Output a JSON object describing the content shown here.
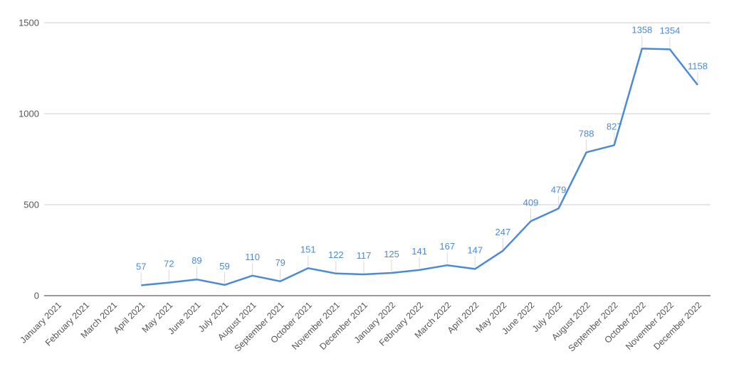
{
  "chart_data": {
    "type": "line",
    "title": "",
    "xlabel": "",
    "ylabel": "",
    "ylim": [
      0,
      1500
    ],
    "yticks": [
      0,
      500,
      1000,
      1500
    ],
    "grid": true,
    "legend": "none",
    "color": "#4a8ad8",
    "categories": [
      "January 2021",
      "February 2021",
      "March 2021",
      "April 2021",
      "May 2021",
      "June 2021",
      "July 2021",
      "August 2021",
      "September 2021",
      "October 2021",
      "November 2021",
      "December 2021",
      "January 2022",
      "February 2022",
      "March 2022",
      "April 2022",
      "May 2022",
      "June 2022",
      "July 2022",
      "August 2022",
      "September 2022",
      "October 2022",
      "November 2022",
      "December 2022"
    ],
    "series": [
      {
        "values": [
          null,
          null,
          null,
          57,
          72,
          89,
          59,
          110,
          79,
          151,
          122,
          117,
          125,
          141,
          167,
          147,
          247,
          409,
          479,
          788,
          827,
          1358,
          1354,
          1158
        ]
      }
    ]
  }
}
